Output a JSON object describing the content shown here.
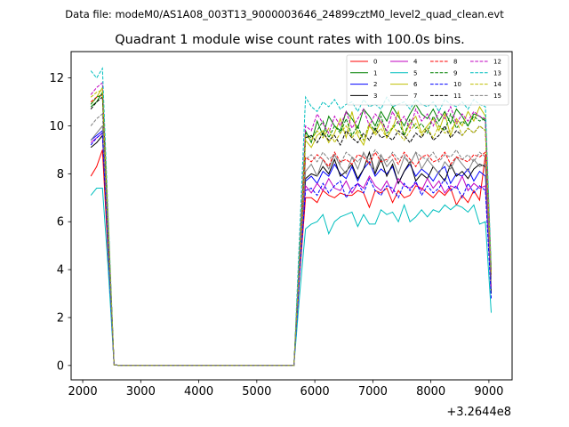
{
  "figure": {
    "suptitle": "Data file: modeM0/AS1A08_003T13_9000003646_24899cztM0_level2_quad_clean.evt",
    "offset_text": "+3.2644e8"
  },
  "chart_data": {
    "type": "line",
    "title": "Quadrant 1 module wise count rates with 100.0s bins.",
    "xlabel": "",
    "ylabel": "",
    "x_offset": 326440000,
    "xlim": [
      1800,
      9400
    ],
    "ylim": [
      -0.6,
      13.1
    ],
    "xticks": [
      2000,
      3000,
      4000,
      5000,
      6000,
      7000,
      8000,
      9000
    ],
    "xtick_labels": [
      "2000",
      "3000",
      "4000",
      "5000",
      "6000",
      "7000",
      "8000",
      "9000"
    ],
    "yticks": [
      0,
      2,
      4,
      6,
      8,
      10,
      12
    ],
    "ytick_labels": [
      "0",
      "2",
      "4",
      "6",
      "8",
      "10",
      "12"
    ],
    "grid": false,
    "legend_position": "top-right",
    "x": [
      2140,
      2240,
      2340,
      2440,
      2540,
      2640,
      2740,
      2840,
      2940,
      3040,
      3140,
      3240,
      3340,
      3440,
      3540,
      3640,
      3740,
      3840,
      3940,
      4040,
      4140,
      4240,
      4340,
      4440,
      4540,
      4640,
      4740,
      4840,
      4940,
      5040,
      5140,
      5240,
      5340,
      5440,
      5540,
      5640,
      5740,
      5840,
      5940,
      6040,
      6140,
      6240,
      6340,
      6440,
      6540,
      6640,
      6740,
      6840,
      6940,
      7040,
      7140,
      7240,
      7340,
      7440,
      7540,
      7640,
      7740,
      7840,
      7940,
      8040,
      8140,
      8240,
      8340,
      8440,
      8540,
      8640,
      8740,
      8840,
      8940,
      9040
    ],
    "series": [
      {
        "name": "0",
        "color": "#ff0000",
        "dash": "solid",
        "values": [
          7.9,
          8.3,
          9.0,
          4.5,
          0.03,
          0,
          0,
          0,
          0,
          0,
          0,
          0,
          0,
          0,
          0,
          0,
          0,
          0,
          0,
          0,
          0,
          0,
          0,
          0,
          0,
          0,
          0,
          0,
          0,
          0,
          0,
          0,
          0,
          0,
          0,
          0,
          3.8,
          7.0,
          7.0,
          6.8,
          7.3,
          7.1,
          7.0,
          7.2,
          7.1,
          7.1,
          7.3,
          7.2,
          6.6,
          7.3,
          7.2,
          7.4,
          6.8,
          7.3,
          7.0,
          7.1,
          7.5,
          7.4,
          7.2,
          7.0,
          7.3,
          7.1,
          7.4,
          6.7,
          7.1,
          6.8,
          7.3,
          6.9,
          8.8,
          3.8
        ]
      },
      {
        "name": "1",
        "color": "#008000",
        "dash": "solid",
        "values": [
          10.8,
          11.0,
          11.4,
          5.8,
          0.03,
          0,
          0,
          0,
          0,
          0,
          0,
          0,
          0,
          0,
          0,
          0,
          0,
          0,
          0,
          0,
          0,
          0,
          0,
          0,
          0,
          0,
          0,
          0,
          0,
          0,
          0,
          0,
          0,
          0,
          0,
          0,
          4.8,
          9.8,
          9.3,
          10.2,
          9.6,
          10.4,
          10.0,
          9.8,
          10.6,
          10.3,
          9.9,
          10.7,
          10.4,
          10.0,
          10.6,
          10.2,
          10.8,
          10.4,
          10.0,
          10.5,
          10.9,
          10.5,
          10.3,
          10.7,
          10.2,
          10.6,
          10.1,
          10.7,
          10.4,
          10.0,
          10.5,
          10.4,
          10.2,
          3.8
        ]
      },
      {
        "name": "2",
        "color": "#0000ff",
        "dash": "solid",
        "values": [
          9.4,
          9.6,
          9.8,
          4.9,
          0.03,
          0,
          0,
          0,
          0,
          0,
          0,
          0,
          0,
          0,
          0,
          0,
          0,
          0,
          0,
          0,
          0,
          0,
          0,
          0,
          0,
          0,
          0,
          0,
          0,
          0,
          0,
          0,
          0,
          0,
          0,
          0,
          4.2,
          7.7,
          7.9,
          7.6,
          8.1,
          7.9,
          8.4,
          8.0,
          7.8,
          8.3,
          7.7,
          8.2,
          8.5,
          7.9,
          8.2,
          8.0,
          8.3,
          7.6,
          8.1,
          8.4,
          7.9,
          8.2,
          8.0,
          7.7,
          8.1,
          8.3,
          7.6,
          8.0,
          7.9,
          8.2,
          7.7,
          8.1,
          7.9,
          3.6
        ]
      },
      {
        "name": "3",
        "color": "#000000",
        "dash": "solid",
        "values": [
          9.1,
          9.3,
          9.6,
          4.8,
          0.03,
          0,
          0,
          0,
          0,
          0,
          0,
          0,
          0,
          0,
          0,
          0,
          0,
          0,
          0,
          0,
          0,
          0,
          0,
          0,
          0,
          0,
          0,
          0,
          0,
          0,
          0,
          0,
          0,
          0,
          0,
          0,
          4.2,
          7.8,
          8.0,
          7.9,
          8.3,
          8.0,
          8.6,
          7.9,
          8.1,
          8.4,
          7.8,
          8.2,
          8.9,
          8.0,
          8.6,
          7.9,
          8.4,
          7.6,
          8.1,
          8.5,
          7.7,
          8.0,
          7.8,
          8.3,
          8.0,
          7.7,
          8.4,
          7.9,
          8.1,
          7.8,
          8.2,
          8.4,
          8.3,
          3.0
        ]
      },
      {
        "name": "4",
        "color": "#c000c0",
        "dash": "solid",
        "values": [
          9.3,
          9.5,
          9.7,
          4.9,
          0.03,
          0,
          0,
          0,
          0,
          0,
          0,
          0,
          0,
          0,
          0,
          0,
          0,
          0,
          0,
          0,
          0,
          0,
          0,
          0,
          0,
          0,
          0,
          0,
          0,
          0,
          0,
          0,
          0,
          0,
          0,
          0,
          4.0,
          7.5,
          7.2,
          7.6,
          7.3,
          7.8,
          7.4,
          7.3,
          7.7,
          7.2,
          7.6,
          7.4,
          7.9,
          7.5,
          7.3,
          7.7,
          7.2,
          7.8,
          7.5,
          7.4,
          7.6,
          7.3,
          7.8,
          7.4,
          7.7,
          7.2,
          7.5,
          7.4,
          7.9,
          7.3,
          7.6,
          7.4,
          7.5,
          3.3
        ]
      },
      {
        "name": "5",
        "color": "#00bfbf",
        "dash": "solid",
        "values": [
          7.1,
          7.4,
          7.4,
          4.0,
          0.03,
          0,
          0,
          0,
          0,
          0,
          0,
          0,
          0,
          0,
          0,
          0,
          0,
          0,
          0,
          0,
          0,
          0,
          0,
          0,
          0,
          0,
          0,
          0,
          0,
          0,
          0,
          0,
          0,
          0,
          0,
          0,
          3.0,
          5.7,
          5.9,
          6.0,
          6.3,
          5.5,
          6.0,
          6.2,
          6.3,
          6.4,
          5.8,
          6.3,
          5.9,
          5.9,
          6.5,
          6.3,
          6.4,
          6.0,
          6.7,
          6.0,
          6.2,
          6.5,
          6.2,
          6.5,
          6.4,
          6.7,
          6.5,
          6.7,
          6.6,
          6.4,
          6.7,
          5.9,
          6.0,
          2.2
        ]
      },
      {
        "name": "6",
        "color": "#bfbf00",
        "dash": "solid",
        "values": [
          10.9,
          11.2,
          11.6,
          5.8,
          0.03,
          0,
          0,
          0,
          0,
          0,
          0,
          0,
          0,
          0,
          0,
          0,
          0,
          0,
          0,
          0,
          0,
          0,
          0,
          0,
          0,
          0,
          0,
          0,
          0,
          0,
          0,
          0,
          0,
          0,
          0,
          0,
          4.6,
          9.4,
          9.1,
          9.6,
          9.8,
          9.3,
          9.7,
          10.3,
          9.5,
          10.6,
          9.6,
          9.2,
          10.0,
          9.7,
          10.2,
          9.5,
          9.9,
          10.6,
          9.6,
          10.1,
          10.4,
          9.7,
          10.0,
          10.3,
          9.8,
          10.5,
          9.6,
          10.3,
          10.0,
          10.6,
          10.2,
          10.8,
          10.4,
          3.9
        ]
      },
      {
        "name": "7",
        "color": "#808080",
        "dash": "solid",
        "values": [
          9.4,
          9.7,
          10.0,
          5.0,
          0.03,
          0,
          0,
          0,
          0,
          0,
          0,
          0,
          0,
          0,
          0,
          0,
          0,
          0,
          0,
          0,
          0,
          0,
          0,
          0,
          0,
          0,
          0,
          0,
          0,
          0,
          0,
          0,
          0,
          0,
          0,
          0,
          4.2,
          8.1,
          8.4,
          7.9,
          8.6,
          8.2,
          8.8,
          8.3,
          8.0,
          8.7,
          8.2,
          8.9,
          8.4,
          8.1,
          8.8,
          8.3,
          8.6,
          8.0,
          8.7,
          8.4,
          8.9,
          8.2,
          8.6,
          8.3,
          8.0,
          8.5,
          8.2,
          8.7,
          8.4,
          8.1,
          8.6,
          8.3,
          8.4,
          3.4
        ]
      },
      {
        "name": "8",
        "color": "#ff0000",
        "dash": "dashed",
        "values": [
          11.0,
          11.2,
          11.3,
          5.7,
          0.03,
          0,
          0,
          0,
          0,
          0,
          0,
          0,
          0,
          0,
          0,
          0,
          0,
          0,
          0,
          0,
          0,
          0,
          0,
          0,
          0,
          0,
          0,
          0,
          0,
          0,
          0,
          0,
          0,
          0,
          0,
          0,
          4.4,
          8.7,
          8.5,
          8.8,
          8.6,
          8.3,
          8.9,
          8.5,
          8.6,
          8.4,
          8.8,
          8.7,
          8.4,
          8.9,
          8.5,
          8.6,
          8.8,
          8.4,
          8.9,
          8.6,
          8.3,
          8.7,
          8.8,
          8.5,
          8.6,
          8.9,
          8.4,
          8.7,
          8.6,
          8.5,
          8.8,
          8.7,
          8.9,
          3.7
        ]
      },
      {
        "name": "9",
        "color": "#008000",
        "dash": "dashed",
        "values": [
          10.9,
          11.2,
          11.3,
          5.7,
          0.03,
          0,
          0,
          0,
          0,
          0,
          0,
          0,
          0,
          0,
          0,
          0,
          0,
          0,
          0,
          0,
          0,
          0,
          0,
          0,
          0,
          0,
          0,
          0,
          0,
          0,
          0,
          0,
          0,
          0,
          0,
          0,
          4.8,
          9.7,
          9.5,
          9.8,
          10.2,
          9.5,
          10.0,
          9.7,
          10.3,
          9.6,
          10.0,
          9.4,
          10.1,
          9.8,
          10.4,
          9.7,
          9.9,
          10.2,
          9.6,
          10.3,
          9.9,
          10.1,
          9.7,
          10.4,
          10.0,
          9.8,
          10.5,
          9.9,
          10.2,
          10.0,
          10.4,
          10.2,
          10.3,
          3.9
        ]
      },
      {
        "name": "10",
        "color": "#0000ff",
        "dash": "dashed",
        "values": [
          9.2,
          9.5,
          9.7,
          4.8,
          0.03,
          0,
          0,
          0,
          0,
          0,
          0,
          0,
          0,
          0,
          0,
          0,
          0,
          0,
          0,
          0,
          0,
          0,
          0,
          0,
          0,
          0,
          0,
          0,
          0,
          0,
          0,
          0,
          0,
          0,
          0,
          0,
          3.9,
          7.3,
          7.4,
          7.1,
          7.6,
          7.2,
          7.5,
          7.7,
          7.0,
          7.4,
          7.6,
          7.2,
          7.8,
          7.3,
          7.1,
          7.5,
          7.4,
          7.0,
          7.6,
          7.3,
          7.7,
          7.1,
          7.5,
          7.2,
          7.4,
          7.8,
          7.3,
          7.5,
          7.0,
          7.6,
          7.2,
          7.5,
          7.3,
          2.8
        ]
      },
      {
        "name": "11",
        "color": "#000000",
        "dash": "dashed",
        "values": [
          10.7,
          11.0,
          11.2,
          5.6,
          0.03,
          0,
          0,
          0,
          0,
          0,
          0,
          0,
          0,
          0,
          0,
          0,
          0,
          0,
          0,
          0,
          0,
          0,
          0,
          0,
          0,
          0,
          0,
          0,
          0,
          0,
          0,
          0,
          0,
          0,
          0,
          0,
          4.6,
          9.5,
          9.6,
          9.3,
          9.7,
          9.4,
          9.6,
          9.2,
          9.8,
          9.5,
          9.3,
          9.7,
          9.4,
          9.9,
          9.5,
          9.6,
          9.4,
          9.8,
          9.6,
          9.3,
          9.7,
          9.5,
          9.9,
          9.4,
          9.6,
          10.0,
          9.5,
          9.8,
          9.6,
          9.9,
          9.7,
          10.0,
          9.8,
          3.8
        ]
      },
      {
        "name": "12",
        "color": "#c000c0",
        "dash": "dashed",
        "values": [
          11.3,
          11.6,
          11.8,
          5.9,
          0.03,
          0,
          0,
          0,
          0,
          0,
          0,
          0,
          0,
          0,
          0,
          0,
          0,
          0,
          0,
          0,
          0,
          0,
          0,
          0,
          0,
          0,
          0,
          0,
          0,
          0,
          0,
          0,
          0,
          0,
          0,
          0,
          4.8,
          10.0,
          9.8,
          10.5,
          10.1,
          9.7,
          10.4,
          10.0,
          10.6,
          9.9,
          10.3,
          10.7,
          10.0,
          10.5,
          10.2,
          9.8,
          10.6,
          10.1,
          10.4,
          9.9,
          10.7,
          10.2,
          10.5,
          10.0,
          10.6,
          10.3,
          10.8,
          10.1,
          10.5,
          10.2,
          10.6,
          10.4,
          10.3,
          3.9
        ]
      },
      {
        "name": "13",
        "color": "#00bfbf",
        "dash": "dashed",
        "values": [
          12.3,
          12.0,
          12.4,
          6.2,
          0.03,
          0,
          0,
          0,
          0,
          0,
          0,
          0,
          0,
          0,
          0,
          0,
          0,
          0,
          0,
          0,
          0,
          0,
          0,
          0,
          0,
          0,
          0,
          0,
          0,
          0,
          0,
          0,
          0,
          0,
          0,
          0,
          5.6,
          11.2,
          10.8,
          10.6,
          11.0,
          10.8,
          11.1,
          10.7,
          10.9,
          11.0,
          10.6,
          11.1,
          10.8,
          10.9,
          10.7,
          11.2,
          10.8,
          10.9,
          11.0,
          10.7,
          11.1,
          10.9,
          10.8,
          11.0,
          10.6,
          11.1,
          10.9,
          10.8,
          11.0,
          10.7,
          11.1,
          10.9,
          10.8,
          4.1
        ]
      },
      {
        "name": "14",
        "color": "#bfbf00",
        "dash": "dashed",
        "values": [
          11.2,
          11.4,
          11.5,
          5.8,
          0.03,
          0,
          0,
          0,
          0,
          0,
          0,
          0,
          0,
          0,
          0,
          0,
          0,
          0,
          0,
          0,
          0,
          0,
          0,
          0,
          0,
          0,
          0,
          0,
          0,
          0,
          0,
          0,
          0,
          0,
          0,
          0,
          4.6,
          9.6,
          9.4,
          9.8,
          9.5,
          9.9,
          9.3,
          9.7,
          10.0,
          9.5,
          9.8,
          9.4,
          10.1,
          9.6,
          9.9,
          9.5,
          10.0,
          9.7,
          9.4,
          9.8,
          10.1,
          9.6,
          9.9,
          9.5,
          10.0,
          9.7,
          9.8,
          10.2,
          9.6,
          9.9,
          9.7,
          10.0,
          9.8,
          3.8
        ]
      },
      {
        "name": "15",
        "color": "#808080",
        "dash": "dashed",
        "values": [
          10.0,
          10.3,
          10.5,
          5.2,
          0.03,
          0,
          0,
          0,
          0,
          0,
          0,
          0,
          0,
          0,
          0,
          0,
          0,
          0,
          0,
          0,
          0,
          0,
          0,
          0,
          0,
          0,
          0,
          0,
          0,
          0,
          0,
          0,
          0,
          0,
          0,
          0,
          4.4,
          8.6,
          8.8,
          8.5,
          8.9,
          8.6,
          8.8,
          8.4,
          8.9,
          8.7,
          8.5,
          8.8,
          8.6,
          9.0,
          8.7,
          8.5,
          8.9,
          8.6,
          8.8,
          8.4,
          8.9,
          8.7,
          8.6,
          8.9,
          8.5,
          8.8,
          8.7,
          9.0,
          8.6,
          8.8,
          8.5,
          8.9,
          8.7,
          3.6
        ]
      }
    ]
  }
}
